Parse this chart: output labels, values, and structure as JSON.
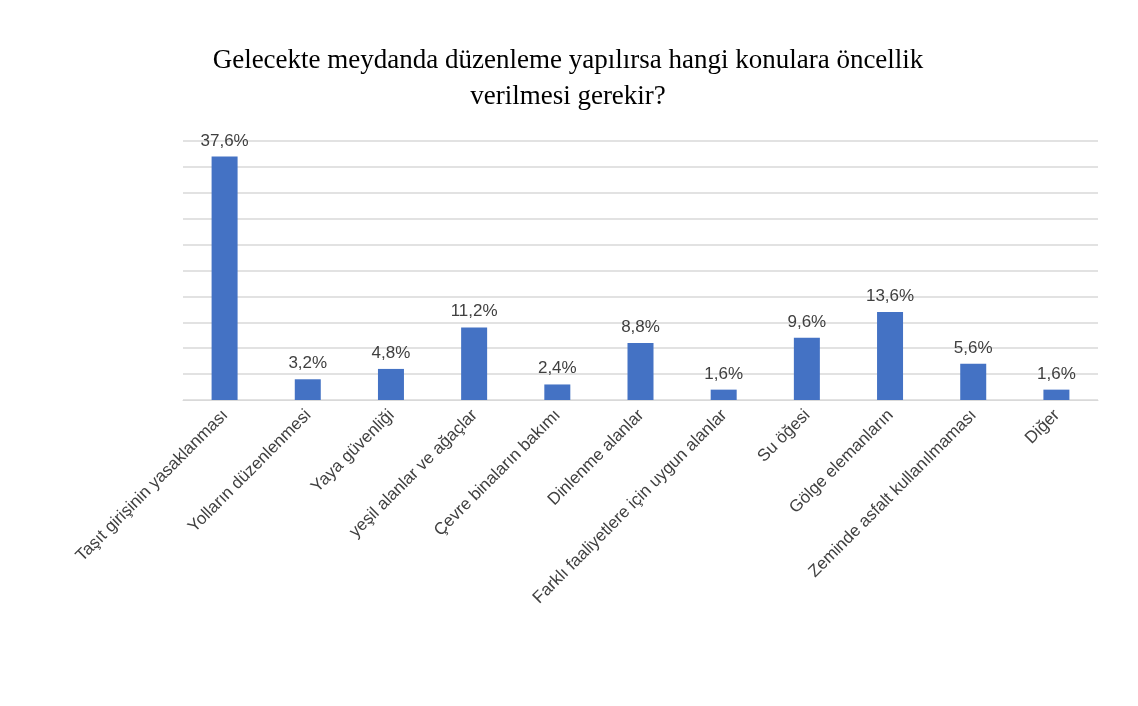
{
  "chart_data": {
    "type": "bar",
    "title": "Gelecekte meydanda düzenleme yapılırsa hangi konulara öncellik\nverilmesi gerekir?",
    "categories": [
      "Taşıt girişinin yasaklanması",
      "Yolların düzenlenmesi",
      "Yaya güvenliği",
      "yeşil alanlar ve ağaçlar",
      "Çevre binaların bakımı",
      "Dinlenme alanlar",
      "Farklı faaliyetlere için uygun alanlar",
      "Su öğesi",
      "Gölge elemanların",
      "Zeminde asfalt kullanılmaması",
      "Diğer"
    ],
    "values": [
      37.6,
      3.2,
      4.8,
      11.2,
      2.4,
      8.8,
      1.6,
      9.6,
      13.6,
      5.6,
      1.6
    ],
    "value_labels": [
      "37,6%",
      "3,2%",
      "4,8%",
      "11,2%",
      "2,4%",
      "8,8%",
      "1,6%",
      "9,6%",
      "13,6%",
      "5,6%",
      "1,6%"
    ],
    "color": "#4472c4",
    "ylim": [
      0,
      40
    ],
    "yticks": [
      {
        "value": 0,
        "label": null
      },
      {
        "value": 4,
        "label": null
      },
      {
        "value": 8,
        "label": null
      },
      {
        "value": 12,
        "label": null
      },
      {
        "value": 16,
        "label": null
      },
      {
        "value": 20,
        "label": null
      },
      {
        "value": 24,
        "label": null
      },
      {
        "value": 28,
        "label": null
      },
      {
        "value": 32,
        "label": null
      },
      {
        "value": 36,
        "label": null
      },
      {
        "value": 40,
        "label": null
      }
    ],
    "grid": "y",
    "tick_labels": "x"
  }
}
